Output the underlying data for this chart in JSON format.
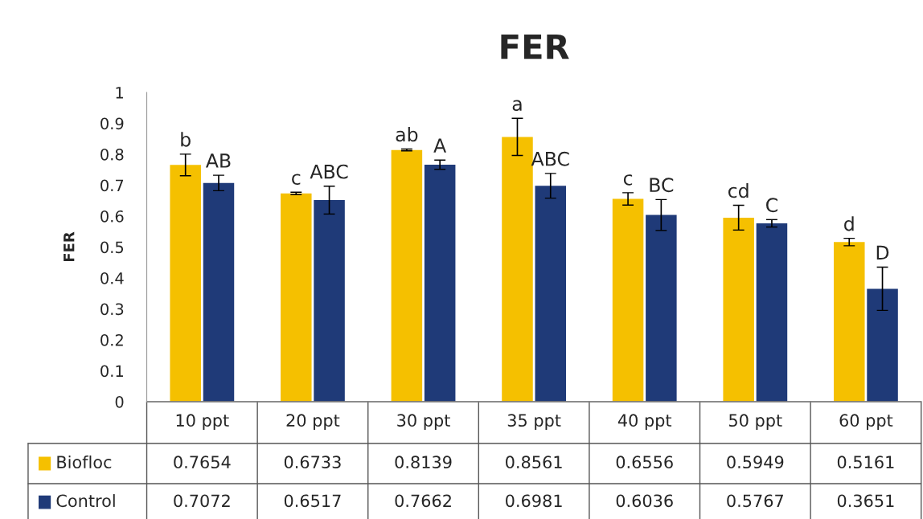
{
  "chart_data": {
    "type": "bar",
    "title": "FER",
    "ylabel": "FER",
    "categories": [
      "10 ppt",
      "20 ppt",
      "30 ppt",
      "35 ppt",
      "40 ppt",
      "50 ppt",
      "60 ppt"
    ],
    "series": [
      {
        "name": "Biofloc",
        "color": "#f5c000",
        "values": [
          0.7654,
          0.6733,
          0.8139,
          0.8561,
          0.6556,
          0.5949,
          0.5161
        ],
        "errors": [
          0.035,
          0.004,
          0.003,
          0.06,
          0.02,
          0.04,
          0.012
        ]
      },
      {
        "name": "Control",
        "color": "#1f3a78",
        "values": [
          0.7072,
          0.6517,
          0.7662,
          0.6981,
          0.6036,
          0.5767,
          0.3651
        ],
        "errors": [
          0.025,
          0.045,
          0.015,
          0.04,
          0.05,
          0.012,
          0.07
        ]
      }
    ],
    "ylim": [
      0,
      1
    ],
    "yticks": [
      0,
      0.1,
      0.2,
      0.3,
      0.4,
      0.5,
      0.6,
      0.7,
      0.8,
      0.9,
      1
    ],
    "data_labels": true,
    "legend": "bottom",
    "grid": false,
    "annotations": [
      "b",
      "AB",
      "c",
      "ABC",
      "ab",
      "A",
      "a",
      "ABC",
      "c",
      "BC",
      "cd",
      "C",
      "d",
      "D"
    ]
  }
}
